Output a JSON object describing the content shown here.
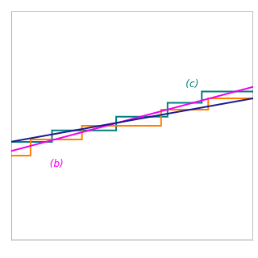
{
  "chart_data": {
    "type": "line",
    "series": [
      {
        "color": "#1a1a8c",
        "x": [
          -0.05,
          1.08
        ],
        "values": [
          0.43,
          0.62
        ]
      },
      {
        "color": "#ee00ee",
        "x": [
          -0.05,
          1.08
        ],
        "values": [
          0.39,
          0.67
        ]
      },
      {
        "color": "#ff8000",
        "x": [
          -0.05,
          0.04,
          0.04,
          0.28,
          0.28,
          0.65,
          0.65,
          0.87,
          0.87,
          1.08
        ],
        "values": [
          0.37,
          0.37,
          0.44,
          0.44,
          0.5,
          0.5,
          0.57,
          0.57,
          0.62,
          0.62
        ]
      },
      {
        "color": "#008080",
        "x": [
          -0.05,
          0.14,
          0.14,
          0.44,
          0.44,
          0.68,
          0.68,
          0.84,
          0.84,
          1.08
        ],
        "values": [
          0.43,
          0.43,
          0.48,
          0.48,
          0.54,
          0.54,
          0.6,
          0.6,
          0.65,
          0.65
        ]
      }
    ],
    "annotations": [
      {
        "text": "(b)",
        "x": 0.13,
        "y": 0.33,
        "color": "#ee00ee"
      },
      {
        "text": "(c)",
        "x": 0.765,
        "y": 0.68,
        "color": "#008080"
      }
    ],
    "xlim": [
      -0.05,
      1.08
    ],
    "ylim": [
      0.0,
      1.0
    ],
    "tick_labels": false,
    "grid": false
  }
}
